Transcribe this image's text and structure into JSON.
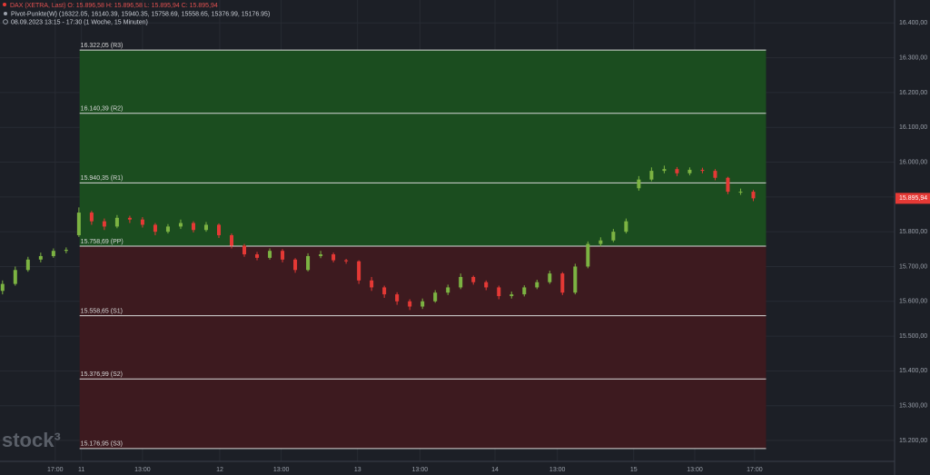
{
  "chart_data": {
    "type": "candlestick",
    "header": "DAX (XETRA, Last)  O: 15.896,58  H: 15.896,58  L: 15.895,94  C: 15.895,94",
    "indicator": "Pivot-Punkte(W)  (16322.05, 16140.39, 15940.35, 15758.69, 15558.65, 15376.99, 15176.95)",
    "period": "08.09.2023 13:15 - 17:30   (1 Woche, 15 Minuten)",
    "watermark": "stock³",
    "up_color": "#7cb342",
    "down_color": "#e53935",
    "resistance_zone_color": "#1b4d1f",
    "support_zone_color": "#3d1a1f",
    "grid": true,
    "open": [
      15630,
      15650,
      15690,
      15720,
      15730,
      15745,
      15790,
      15855,
      15830,
      15815,
      15840,
      15835,
      15820,
      15800,
      15815,
      15825,
      15805,
      15820,
      15790,
      15760,
      15735,
      15725,
      15745,
      15720,
      15690,
      15730,
      15735,
      15718,
      15715,
      15660,
      15640,
      15620,
      15600,
      15585,
      15600,
      15625,
      15640,
      15670,
      15655,
      15640,
      15615,
      15620,
      15640,
      15655,
      15680,
      15625,
      15700,
      15765,
      15775,
      15800,
      15925,
      15950,
      15975,
      15980,
      15968,
      15978,
      15975,
      15955,
      15915,
      15915
    ],
    "high": [
      15660,
      15700,
      15728,
      15740,
      15752,
      15755,
      15870,
      15860,
      15838,
      15848,
      15846,
      15842,
      15825,
      15822,
      15835,
      15830,
      15828,
      15824,
      15795,
      15765,
      15742,
      15752,
      15750,
      15724,
      15738,
      15745,
      15740,
      15722,
      15718,
      15670,
      15645,
      15626,
      15606,
      15608,
      15632,
      15648,
      15680,
      15674,
      15660,
      15645,
      15628,
      15646,
      15662,
      15688,
      15684,
      15708,
      15772,
      15784,
      15808,
      15838,
      15960,
      15985,
      15990,
      15986,
      15985,
      15984,
      15980,
      15958,
      15924,
      15920
    ],
    "low": [
      15620,
      15645,
      15685,
      15712,
      15725,
      15738,
      15785,
      15820,
      15805,
      15810,
      15825,
      15812,
      15790,
      15795,
      15808,
      15798,
      15800,
      15782,
      15752,
      15728,
      15718,
      15720,
      15712,
      15682,
      15686,
      15724,
      15712,
      15708,
      15650,
      15630,
      15610,
      15590,
      15575,
      15578,
      15596,
      15618,
      15635,
      15648,
      15632,
      15606,
      15608,
      15614,
      15635,
      15650,
      15618,
      15620,
      15695,
      15758,
      15770,
      15795,
      15918,
      15945,
      15968,
      15960,
      15962,
      15968,
      15948,
      15908,
      15906,
      15888
    ],
    "close": [
      15650,
      15690,
      15720,
      15730,
      15745,
      15748,
      15855,
      15830,
      15815,
      15840,
      15835,
      15820,
      15800,
      15815,
      15825,
      15805,
      15820,
      15790,
      15760,
      15735,
      15725,
      15745,
      15720,
      15690,
      15730,
      15735,
      15718,
      15715,
      15660,
      15640,
      15620,
      15600,
      15585,
      15600,
      15625,
      15640,
      15670,
      15655,
      15640,
      15615,
      15620,
      15640,
      15655,
      15680,
      15625,
      15700,
      15765,
      15775,
      15800,
      15830,
      15950,
      15975,
      15980,
      15968,
      15978,
      15975,
      15955,
      15915,
      15915,
      15896
    ],
    "pivots": [
      {
        "value": 16322.05,
        "label": "16.322,05 (R3)"
      },
      {
        "value": 16140.39,
        "label": "16.140,39 (R2)"
      },
      {
        "value": 15940.35,
        "label": "15.940,35 (R1)"
      },
      {
        "value": 15758.69,
        "label": "15.758,69 (PP)"
      },
      {
        "value": 15558.65,
        "label": "15.558,65 (S1)"
      },
      {
        "value": 15376.99,
        "label": "15.376,99 (S2)"
      },
      {
        "value": 15176.95,
        "label": "15.176,95 (S3)"
      }
    ],
    "last_price": {
      "value": 15895.94,
      "label": "15.895,94"
    },
    "xlim": [
      -0.2,
      70.1
    ],
    "ylim": [
      15140,
      16466
    ],
    "xticks": [
      {
        "value": 4.14,
        "label": "17:00"
      },
      {
        "value": 6.2,
        "label": "11"
      },
      {
        "value": 11,
        "label": "13:00"
      },
      {
        "value": 17.07,
        "label": "12"
      },
      {
        "value": 21.9,
        "label": "13:00"
      },
      {
        "value": 27.9,
        "label": "13"
      },
      {
        "value": 32.8,
        "label": "13:00"
      },
      {
        "value": 38.7,
        "label": "14"
      },
      {
        "value": 43.6,
        "label": "13:00"
      },
      {
        "value": 49.6,
        "label": "15"
      },
      {
        "value": 54.4,
        "label": "13:00"
      },
      {
        "value": 59.1,
        "label": "17:00"
      }
    ],
    "yticks": [
      {
        "value": 15200,
        "label": "15.200,00"
      },
      {
        "value": 15300,
        "label": "15.300,00"
      },
      {
        "value": 15400,
        "label": "15.400,00"
      },
      {
        "value": 15500,
        "label": "15.500,00"
      },
      {
        "value": 15600,
        "label": "15.600,00"
      },
      {
        "value": 15700,
        "label": "15.700,00"
      },
      {
        "value": 15800,
        "label": "15.800,00"
      },
      {
        "value": 15900,
        "label": "15.900,00"
      },
      {
        "value": 16000,
        "label": "16.000,00"
      },
      {
        "value": 16100,
        "label": "16.100,00"
      },
      {
        "value": 16200,
        "label": "16.200,00"
      },
      {
        "value": 16300,
        "label": "16.300,00"
      },
      {
        "value": 16400,
        "label": "16.400,00"
      }
    ]
  }
}
